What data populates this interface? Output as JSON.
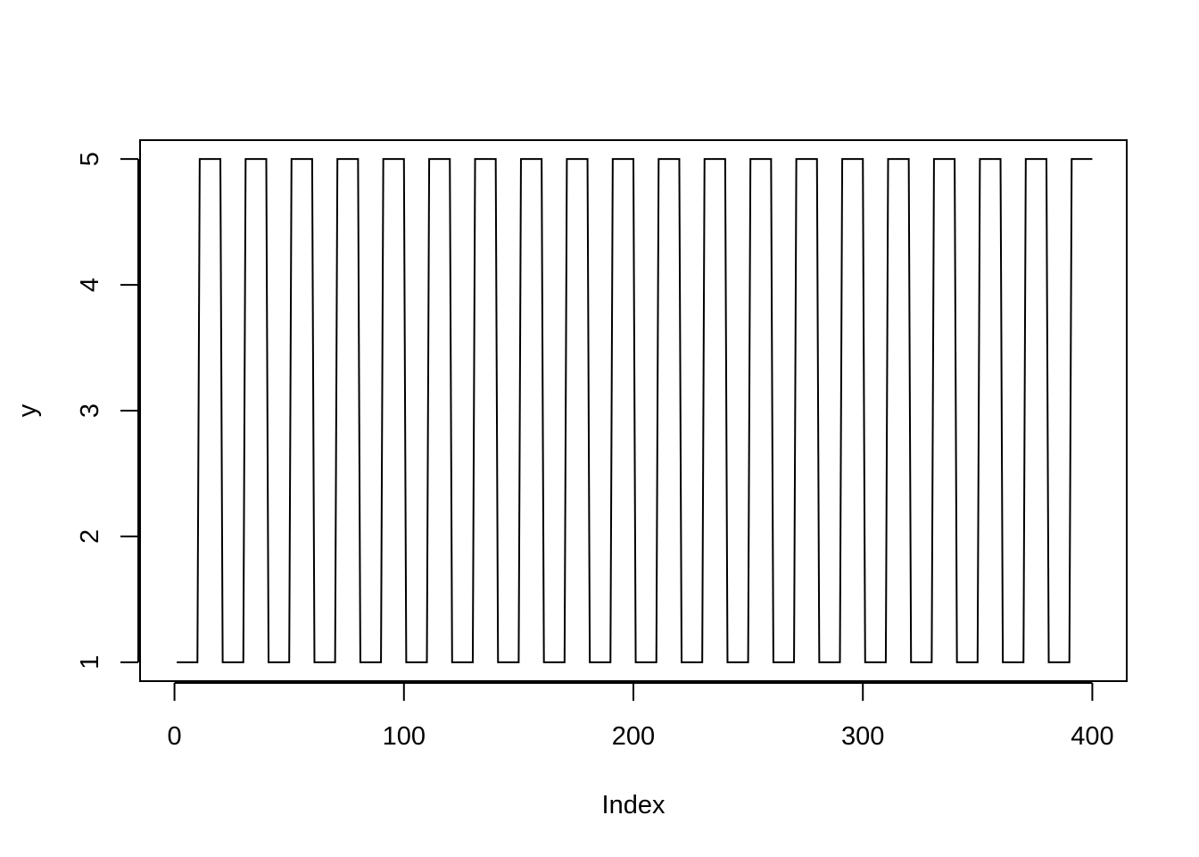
{
  "chart_data": {
    "type": "line",
    "title": "",
    "xlabel": "Index",
    "ylabel": "y",
    "xlim": [
      -15,
      415
    ],
    "ylim": [
      0.85,
      5.15
    ],
    "x_ticks": [
      0,
      100,
      200,
      300,
      400
    ],
    "x_tick_labels": [
      "0",
      "100",
      "200",
      "300",
      "400"
    ],
    "y_ticks": [
      1,
      2,
      3,
      4,
      5
    ],
    "y_tick_labels": [
      "1",
      "2",
      "3",
      "4",
      "5"
    ],
    "grid": false,
    "legend": "none",
    "line_color": "#000000",
    "pattern": {
      "description_values": "square wave: y = 1 for index 1-10, 5 for 11-20, repeating with period 20",
      "length": 400,
      "period": 20,
      "low_value": 1,
      "high_value": 5,
      "low_run": 10,
      "high_run": 10
    },
    "series": [
      {
        "x_range": [
          1,
          400
        ],
        "values_rule": "first 10 points at 1, next 10 at 5, repeated"
      }
    ]
  }
}
